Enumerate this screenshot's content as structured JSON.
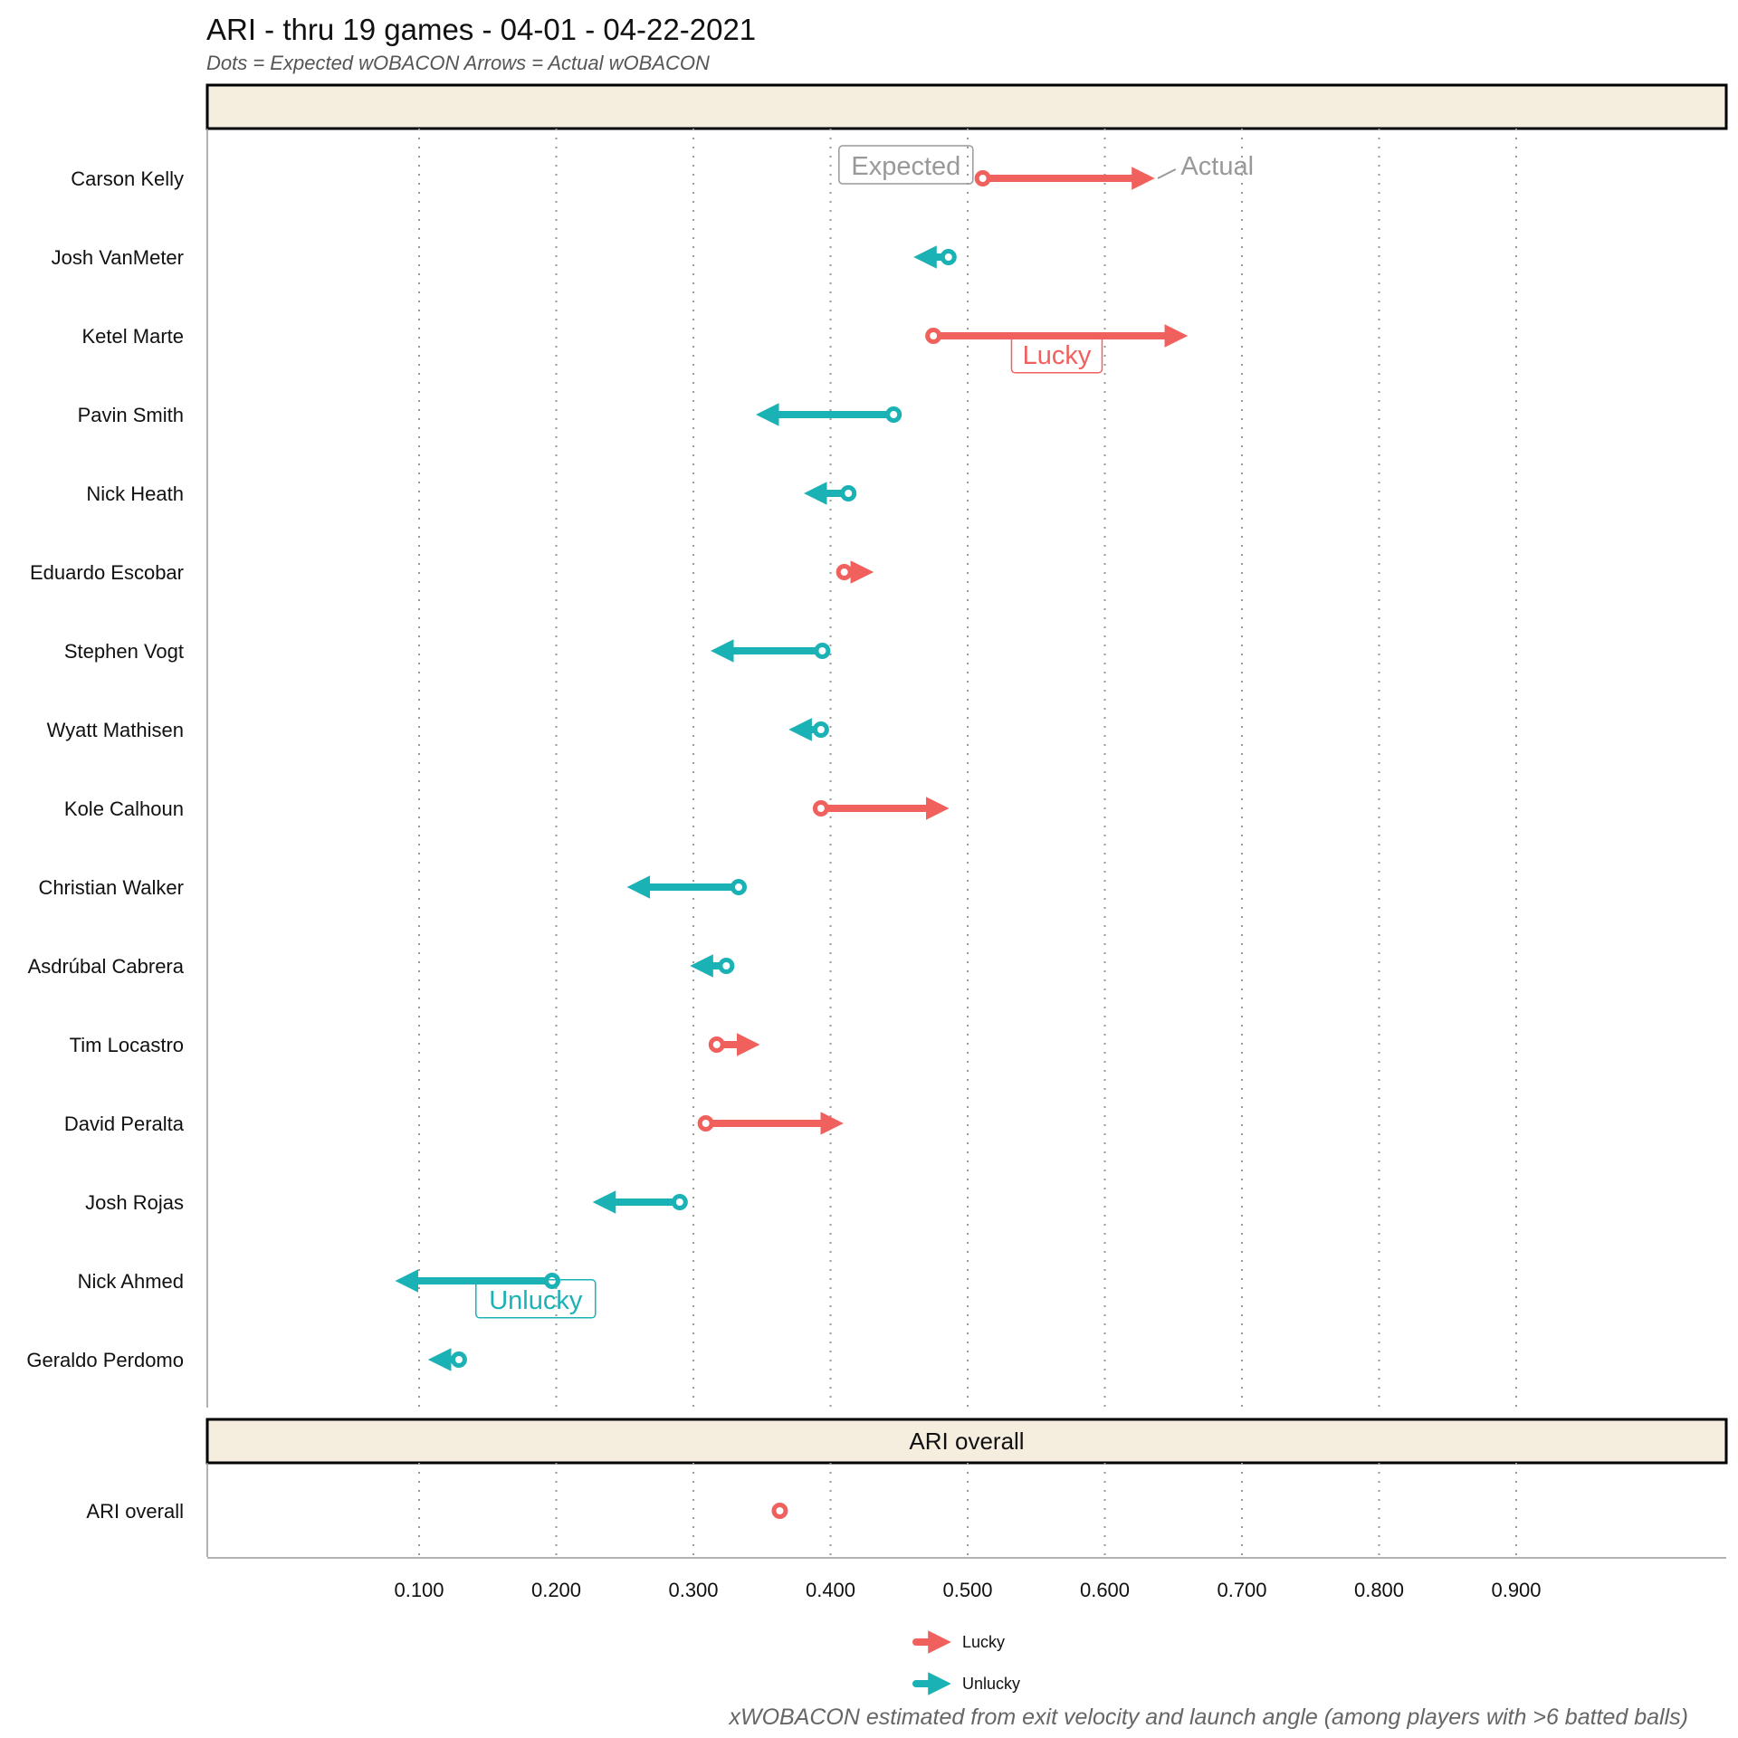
{
  "title": "ARI - thru 19 games - 04-01 - 04-22-2021",
  "subtitle": "Dots = Expected wOBACON   Arrows = Actual wOBACON",
  "caption": "xWOBACON estimated from exit velocity and launch angle (among players with >6 batted balls)",
  "colors": {
    "lucky": "#F0605D",
    "unlucky": "#1AB2B5",
    "strip": "#F5EEDF",
    "grid": "#999999",
    "annotation_gray": "#999999"
  },
  "chart_data": [
    {
      "type": "dumbbell-arrow",
      "panel": "players",
      "strip_label": "",
      "x_axis": {
        "ticks": [
          "0.100",
          "0.200",
          "0.300",
          "0.400",
          "0.500",
          "0.600",
          "0.700",
          "0.800",
          "0.900"
        ],
        "range": [
          -0.05,
          1.06
        ]
      },
      "series": [
        {
          "name": "Lucky",
          "color": "#F0605D"
        },
        {
          "name": "Unlucky",
          "color": "#1AB2B5"
        }
      ],
      "rows": [
        {
          "player": "Carson Kelly",
          "expected": 0.511,
          "actual": 0.632,
          "group": "Lucky"
        },
        {
          "player": "Josh VanMeter",
          "expected": 0.486,
          "actual": 0.465,
          "group": "Unlucky"
        },
        {
          "player": "Ketel Marte",
          "expected": 0.475,
          "actual": 0.656,
          "group": "Lucky"
        },
        {
          "player": "Pavin Smith",
          "expected": 0.446,
          "actual": 0.35,
          "group": "Unlucky"
        },
        {
          "player": "Nick Heath",
          "expected": 0.413,
          "actual": 0.385,
          "group": "Unlucky"
        },
        {
          "player": "Eduardo Escobar",
          "expected": 0.41,
          "actual": 0.427,
          "group": "Lucky"
        },
        {
          "player": "Stephen Vogt",
          "expected": 0.394,
          "actual": 0.317,
          "group": "Unlucky"
        },
        {
          "player": "Wyatt Mathisen",
          "expected": 0.393,
          "actual": 0.374,
          "group": "Unlucky"
        },
        {
          "player": "Kole Calhoun",
          "expected": 0.393,
          "actual": 0.482,
          "group": "Lucky"
        },
        {
          "player": "Christian Walker",
          "expected": 0.333,
          "actual": 0.256,
          "group": "Unlucky"
        },
        {
          "player": "Asdrúbal Cabrera",
          "expected": 0.324,
          "actual": 0.302,
          "group": "Unlucky"
        },
        {
          "player": "Tim Locastro",
          "expected": 0.317,
          "actual": 0.344,
          "group": "Lucky"
        },
        {
          "player": "David Peralta",
          "expected": 0.309,
          "actual": 0.405,
          "group": "Lucky"
        },
        {
          "player": "Josh Rojas",
          "expected": 0.29,
          "actual": 0.231,
          "group": "Unlucky"
        },
        {
          "player": "Nick Ahmed",
          "expected": 0.197,
          "actual": 0.087,
          "group": "Unlucky"
        },
        {
          "player": "Geraldo Perdomo",
          "expected": 0.129,
          "actual": 0.111,
          "group": "Unlucky"
        }
      ],
      "annotations": [
        {
          "text": "Expected",
          "kind": "box",
          "color": "#999999",
          "x": 0.455,
          "row": 0
        },
        {
          "text": "Actual",
          "kind": "plain",
          "color": "#999999",
          "x": 0.682,
          "row": 0
        },
        {
          "text": "Lucky",
          "kind": "box",
          "color": "#F0605D",
          "x": 0.565,
          "row": 2.4
        },
        {
          "text": "Unlucky",
          "kind": "box",
          "color": "#1AB2B5",
          "x": 0.185,
          "row": 14.4
        }
      ]
    },
    {
      "type": "dumbbell-arrow",
      "panel": "team",
      "strip_label": "ARI overall",
      "rows": [
        {
          "player": "ARI overall",
          "expected": 0.363,
          "actual": 0.363,
          "group": "Lucky"
        }
      ]
    }
  ],
  "legend": {
    "position": "bottom",
    "items": [
      {
        "label": "Lucky",
        "color": "#F0605D"
      },
      {
        "label": "Unlucky",
        "color": "#1AB2B5"
      }
    ]
  }
}
